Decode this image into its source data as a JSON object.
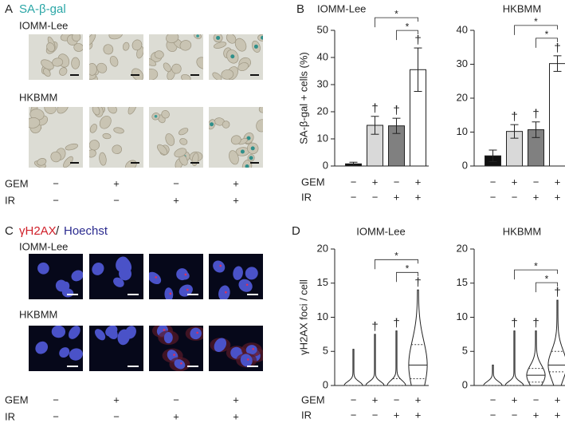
{
  "panel_a": {
    "label": "A",
    "title": "SA-β-gal",
    "rows": [
      "IOMM-Lee",
      "HKBMM"
    ],
    "row_labels": [
      "GEM",
      "IR"
    ],
    "conditions": [
      [
        "−",
        "−"
      ],
      [
        "+",
        "−"
      ],
      [
        "−",
        "+"
      ],
      [
        "+",
        "+"
      ]
    ]
  },
  "panel_b": {
    "label": "B",
    "row_labels": [
      "GEM",
      "IR"
    ]
  },
  "panel_c": {
    "label": "C",
    "title_parts": [
      "γH2AX",
      "/",
      "Hoechst"
    ],
    "rows": [
      "IOMM-Lee",
      "HKBMM"
    ],
    "row_labels": [
      "GEM",
      "IR"
    ],
    "conditions": [
      [
        "−",
        "−"
      ],
      [
        "+",
        "−"
      ],
      [
        "−",
        "+"
      ],
      [
        "+",
        "+"
      ]
    ]
  },
  "panel_d": {
    "label": "D",
    "row_labels": [
      "GEM",
      "IR"
    ]
  },
  "chart_data": [
    {
      "type": "bar",
      "title": "IOMM-Lee",
      "y_label": "SA-β-gal + cells (%)",
      "categories": [
        [
          "−",
          "−"
        ],
        [
          "+",
          "−"
        ],
        [
          "−",
          "+"
        ],
        [
          "+",
          "+"
        ]
      ],
      "values": [
        0.8,
        15,
        14.8,
        35.5
      ],
      "errors": [
        0.6,
        3.3,
        2.8,
        8
      ],
      "colors": [
        "#111111",
        "#d9d9d9",
        "#808080",
        "#ffffff"
      ],
      "ylim": [
        0,
        50
      ],
      "yticks": [
        0,
        10,
        20,
        30,
        40,
        50
      ],
      "markers": [
        null,
        "†",
        "†",
        "†"
      ],
      "significance": [
        "*",
        "*"
      ]
    },
    {
      "type": "bar",
      "title": "HKBMM",
      "categories": [
        [
          "−",
          "−"
        ],
        [
          "+",
          "−"
        ],
        [
          "−",
          "+"
        ],
        [
          "+",
          "+"
        ]
      ],
      "values": [
        3,
        10.2,
        10.7,
        30.2
      ],
      "errors": [
        1.7,
        2,
        2.3,
        2.3
      ],
      "colors": [
        "#111111",
        "#d9d9d9",
        "#808080",
        "#ffffff"
      ],
      "ylim": [
        0,
        40
      ],
      "yticks": [
        0,
        10,
        20,
        30,
        40
      ],
      "markers": [
        null,
        "†",
        "†",
        "†"
      ],
      "significance": [
        "*",
        "*"
      ]
    },
    {
      "type": "violin",
      "title": "IOMM-Lee",
      "y_label": "γH2AX foci / cell",
      "categories": [
        [
          "−",
          "−"
        ],
        [
          "+",
          "−"
        ],
        [
          "−",
          "+"
        ],
        [
          "+",
          "+"
        ]
      ],
      "max": [
        5.3,
        7.5,
        8,
        14
      ],
      "median": [
        0,
        0,
        0,
        3
      ],
      "q1": [
        0,
        0,
        0,
        1
      ],
      "q3": [
        0,
        0,
        1,
        6
      ],
      "ylim": [
        0,
        20
      ],
      "yticks": [
        0,
        5,
        10,
        15,
        20
      ],
      "markers": [
        null,
        "†",
        "†",
        "†"
      ],
      "significance": [
        "*",
        "*"
      ]
    },
    {
      "type": "violin",
      "title": "HKBMM",
      "categories": [
        [
          "−",
          "−"
        ],
        [
          "+",
          "−"
        ],
        [
          "−",
          "+"
        ],
        [
          "+",
          "+"
        ]
      ],
      "max": [
        3,
        8,
        8,
        12.5
      ],
      "median": [
        0,
        0,
        1.5,
        3
      ],
      "q1": [
        0,
        0,
        0.5,
        2
      ],
      "q3": [
        0,
        0,
        2.5,
        5
      ],
      "ylim": [
        0,
        20
      ],
      "yticks": [
        0,
        5,
        10,
        15,
        20
      ],
      "markers": [
        null,
        "†",
        "†",
        "†"
      ],
      "significance": [
        "*",
        "*"
      ]
    }
  ]
}
